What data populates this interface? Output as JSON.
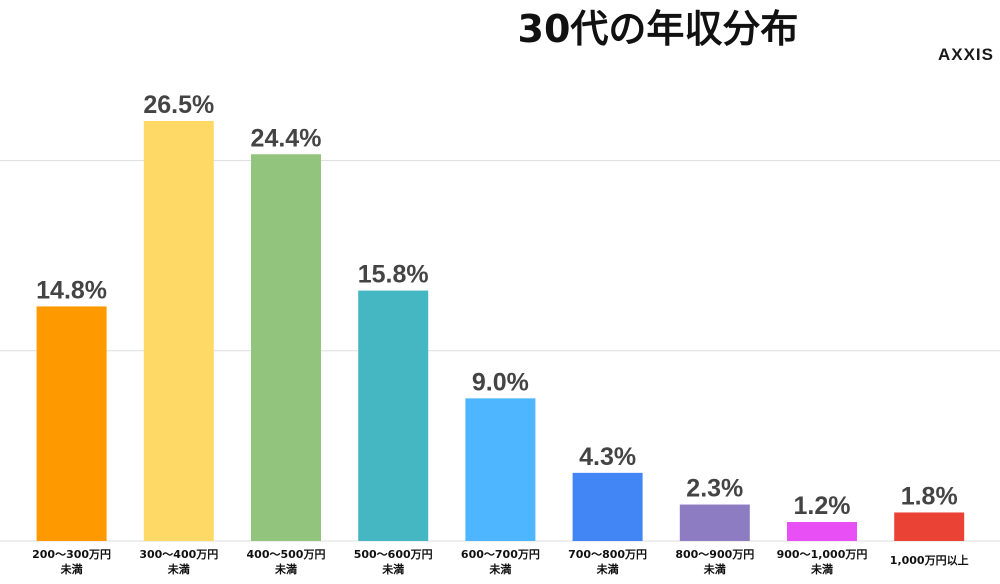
{
  "brand": {
    "logo_text": "AXXIS"
  },
  "chart_data": {
    "type": "bar",
    "title": "30代の年収分布",
    "xlabel": "",
    "ylabel": "",
    "ylim": [
      0,
      30
    ],
    "grid": true,
    "legend": "none",
    "categories": [
      [
        "200〜300万円",
        "未満"
      ],
      [
        "300〜400万円",
        "未満"
      ],
      [
        "400〜500万円",
        "未満"
      ],
      [
        "500〜600万円",
        "未満"
      ],
      [
        "600〜700万円",
        "未満"
      ],
      [
        "700〜800万円",
        "未満"
      ],
      [
        "800〜900万円",
        "未満"
      ],
      [
        "900〜1,000万円",
        "未満"
      ],
      [
        "1,000万円以上"
      ]
    ],
    "values": [
      14.8,
      26.5,
      24.4,
      15.8,
      9.0,
      4.3,
      2.3,
      1.2,
      1.8
    ],
    "value_labels": [
      "14.8%",
      "26.5%",
      "24.4%",
      "15.8%",
      "9.0%",
      "4.3%",
      "2.3%",
      "1.2%",
      "1.8%"
    ],
    "colors": [
      "#FF9900",
      "#FFD966",
      "#93C47D",
      "#45B7C3",
      "#4DB6FF",
      "#4285F4",
      "#8E7CC3",
      "#E84FF5",
      "#EA4335"
    ]
  }
}
